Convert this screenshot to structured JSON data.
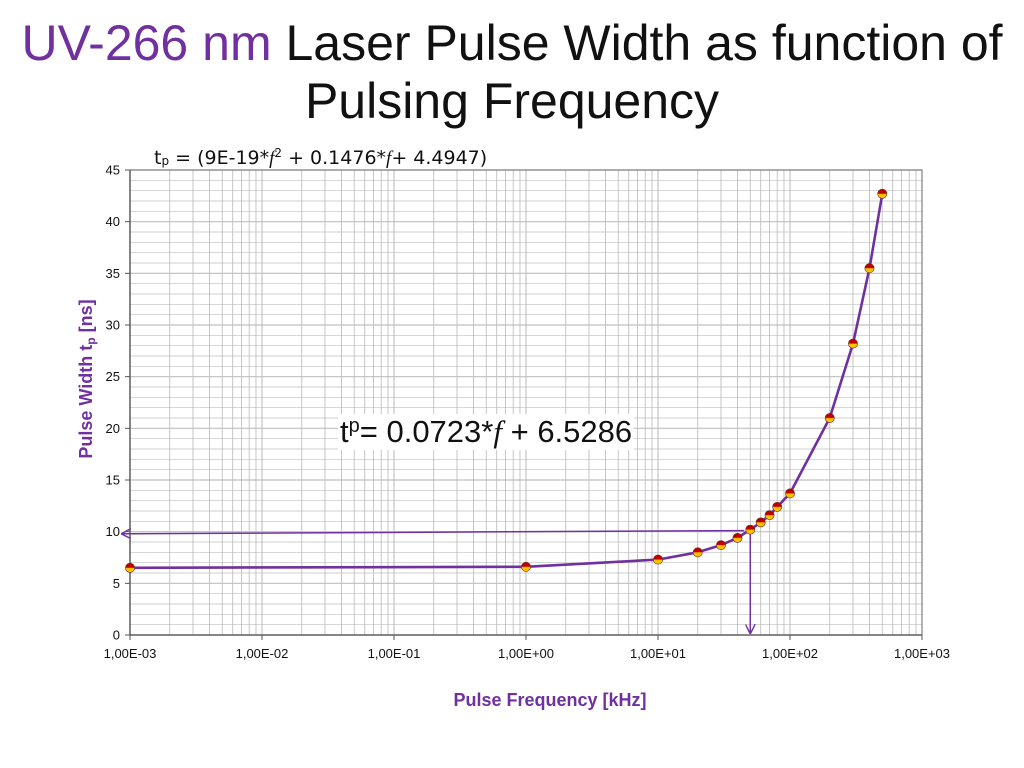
{
  "title": {
    "accent": "UV-266 nm",
    "rest": " Laser Pulse Width as function of Pulsing Frequency"
  },
  "equation_top": {
    "lhs": "t",
    "sub": "p",
    "a": " = (9E-19*",
    "f1": "f",
    "sup": "2",
    "b": " + 0.1476*",
    "f2": "f",
    "c": "+ 4.4947)"
  },
  "equation_main": {
    "lhs": "t",
    "sub": "p",
    "a": "= 0.0723*",
    "f": "f",
    "b": " + 6.5286"
  },
  "colors": {
    "accent": "#7030A0",
    "line": "#7030A0",
    "marker_top": "#C00000",
    "marker_bottom": "#FFC000",
    "grid": "#BFBFBF"
  },
  "chart_data": {
    "type": "line",
    "xscale": "log",
    "xlim": [
      0.001,
      1000
    ],
    "ylim": [
      0,
      45
    ],
    "xlabel_main": "Pulse Frequency [kHz]",
    "ylabel_main": "Pulse Width t",
    "ylabel_sub": "p",
    "ylabel_unit": " [ns]",
    "grid": true,
    "x_ticks": [
      "1,00E-03",
      "1,00E-02",
      "1,00E-01",
      "1,00E+00",
      "1,00E+01",
      "1,00E+02",
      "1,00E+03"
    ],
    "x_tick_values": [
      0.001,
      0.01,
      0.1,
      1,
      10,
      100,
      1000
    ],
    "y_ticks": [
      "0",
      "5",
      "10",
      "15",
      "20",
      "25",
      "30",
      "35",
      "40",
      "45"
    ],
    "y_tick_values": [
      0,
      5,
      10,
      15,
      20,
      25,
      30,
      35,
      40,
      45
    ],
    "series": [
      {
        "x": [
          0.001,
          1,
          10,
          20,
          30,
          40,
          50,
          60,
          70,
          80,
          100,
          200,
          300,
          400,
          500
        ],
        "y": [
          6.5,
          6.6,
          7.3,
          8.0,
          8.7,
          9.4,
          10.2,
          10.9,
          11.6,
          12.4,
          13.7,
          21.0,
          28.2,
          35.5,
          42.7
        ]
      }
    ],
    "annotations": [
      {
        "type": "arrow",
        "from": [
          45,
          10.1
        ],
        "to": [
          0.001,
          9.8
        ]
      },
      {
        "type": "arrow",
        "from": [
          50,
          10.2
        ],
        "to": [
          50,
          0
        ]
      }
    ]
  }
}
